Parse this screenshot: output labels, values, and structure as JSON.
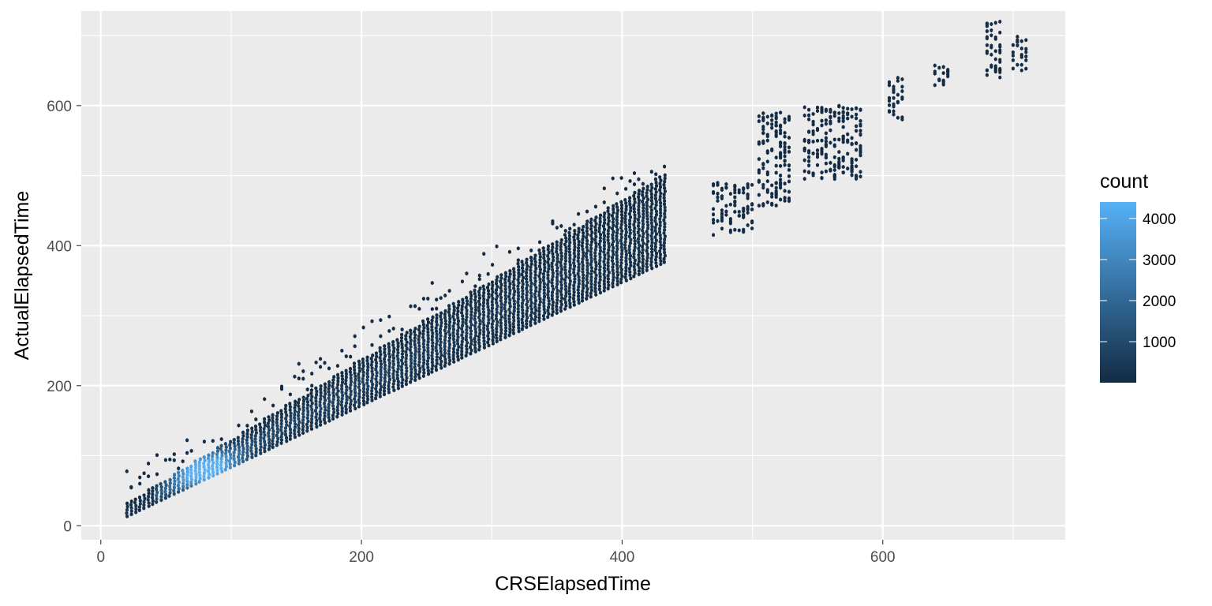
{
  "chart_data": {
    "type": "heatmap",
    "subtype": "hexbin",
    "title": "",
    "xlabel": "CRSElapsedTime",
    "ylabel": "ActualElapsedTime",
    "xlim": [
      -15,
      740
    ],
    "ylim": [
      -20,
      735
    ],
    "x_ticks": [
      0,
      200,
      400,
      600
    ],
    "y_ticks": [
      0,
      200,
      400,
      600
    ],
    "grid": true,
    "legend": {
      "title": "count",
      "placement": "right",
      "ticks": [
        1000,
        2000,
        3000,
        4000
      ],
      "range": [
        1,
        4400
      ],
      "color_low": "#132B43",
      "color_high": "#56B1F7"
    },
    "density_summary": {
      "relation": "ActualElapsedTime closely tracks CRSElapsedTime along the diagonal",
      "peak": {
        "x": 80,
        "y": 80,
        "count": 4400
      },
      "main_band_x_range": [
        20,
        435
      ],
      "outlier_clusters": [
        {
          "x": [
            470,
            500
          ],
          "y": [
            415,
            490
          ]
        },
        {
          "x": [
            505,
            530
          ],
          "y": [
            455,
            590
          ]
        },
        {
          "x": [
            540,
            585
          ],
          "y": [
            495,
            600
          ]
        },
        {
          "x": [
            605,
            615
          ],
          "y": [
            580,
            640
          ]
        },
        {
          "x": [
            640,
            650
          ],
          "y": [
            625,
            660
          ]
        },
        {
          "x": [
            680,
            690
          ],
          "y": [
            640,
            720
          ]
        },
        {
          "x": [
            700,
            710
          ],
          "y": [
            650,
            700
          ]
        }
      ]
    }
  }
}
